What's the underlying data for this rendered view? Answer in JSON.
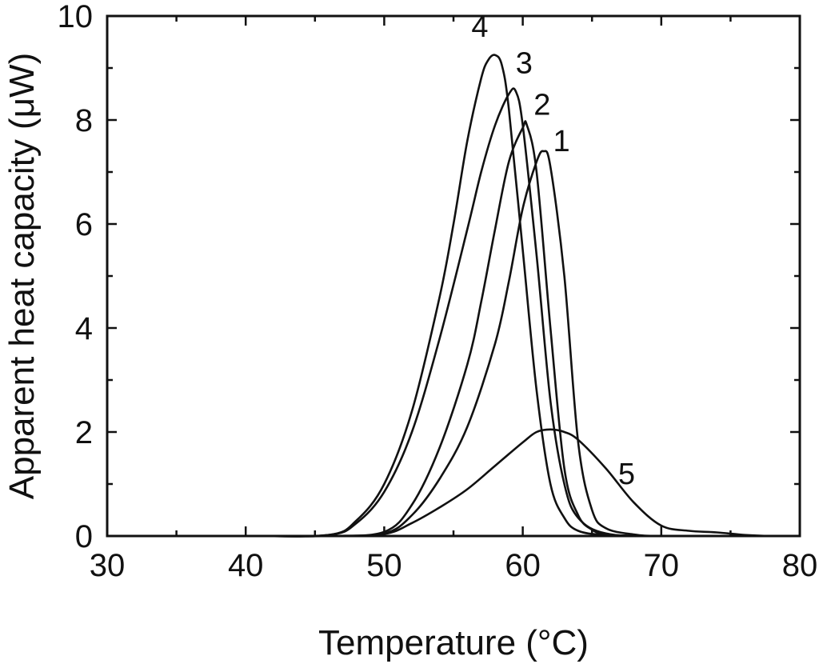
{
  "chart_data": {
    "type": "line",
    "xlabel": "Temperature (°C)",
    "ylabel": "Apparent heat capacity (μW)",
    "xlim": [
      30,
      80
    ],
    "ylim": [
      0,
      10
    ],
    "x_ticks": [
      30,
      40,
      50,
      60,
      70,
      80
    ],
    "y_ticks": [
      0,
      2,
      4,
      6,
      8,
      10
    ],
    "grid": false,
    "legend": "none",
    "line_color": "#111111",
    "series": [
      {
        "name": "1",
        "x": [
          30,
          40,
          46,
          50,
          52,
          54,
          56,
          58,
          59,
          60,
          61,
          61.5,
          62,
          63,
          64,
          65,
          66,
          68,
          70,
          75,
          80
        ],
        "y": [
          0,
          0,
          0,
          0.05,
          0.4,
          1.1,
          2.1,
          3.7,
          4.9,
          6.3,
          7.2,
          7.4,
          7.1,
          5.0,
          1.8,
          0.5,
          0.15,
          0.03,
          0,
          0,
          0
        ]
      },
      {
        "name": "2",
        "x": [
          30,
          40,
          46,
          50,
          52,
          54,
          56,
          57,
          58,
          59,
          60,
          60.3,
          61,
          62,
          63,
          64,
          65,
          66,
          68,
          70,
          80
        ],
        "y": [
          0,
          0,
          0,
          0.08,
          0.6,
          1.7,
          3.3,
          4.5,
          5.9,
          7.2,
          7.85,
          7.9,
          7.0,
          4.0,
          1.3,
          0.4,
          0.12,
          0.03,
          0,
          0,
          0
        ]
      },
      {
        "name": "3",
        "x": [
          30,
          40,
          46,
          48,
          50,
          52,
          54,
          56,
          57,
          58,
          59,
          59.5,
          60,
          61,
          62,
          63,
          64,
          66,
          70,
          80
        ],
        "y": [
          0,
          0,
          0.02,
          0.25,
          0.85,
          2.0,
          3.8,
          5.9,
          7.0,
          7.9,
          8.5,
          8.55,
          7.9,
          5.4,
          2.6,
          1.0,
          0.35,
          0.05,
          0,
          0
        ]
      },
      {
        "name": "4",
        "x": [
          30,
          40,
          46,
          48,
          50,
          52,
          54,
          55,
          56,
          57,
          57.5,
          58,
          58.5,
          59,
          60,
          61,
          62,
          63,
          64,
          66,
          70,
          80
        ],
        "y": [
          0,
          0,
          0.02,
          0.3,
          1.0,
          2.4,
          4.6,
          6.0,
          7.6,
          8.8,
          9.15,
          9.25,
          9.05,
          8.2,
          5.5,
          2.8,
          1.0,
          0.35,
          0.1,
          0.02,
          0,
          0
        ]
      },
      {
        "name": "5",
        "x": [
          30,
          40,
          46,
          50,
          52,
          54,
          56,
          58,
          60,
          61,
          62,
          63,
          64,
          66,
          68,
          70,
          72,
          74,
          76,
          78,
          80
        ],
        "y": [
          0,
          0,
          0,
          0.04,
          0.25,
          0.55,
          0.9,
          1.35,
          1.8,
          2.0,
          2.05,
          2.0,
          1.85,
          1.3,
          0.65,
          0.2,
          0.1,
          0.07,
          0.02,
          0,
          0
        ]
      }
    ],
    "curve_labels": [
      {
        "text": "1",
        "x": 62.8,
        "y": 7.4
      },
      {
        "text": "2",
        "x": 61.4,
        "y": 8.1
      },
      {
        "text": "3",
        "x": 60.1,
        "y": 8.9
      },
      {
        "text": "4",
        "x": 56.9,
        "y": 9.6
      },
      {
        "text": "5",
        "x": 67.5,
        "y": 1.0
      }
    ]
  }
}
